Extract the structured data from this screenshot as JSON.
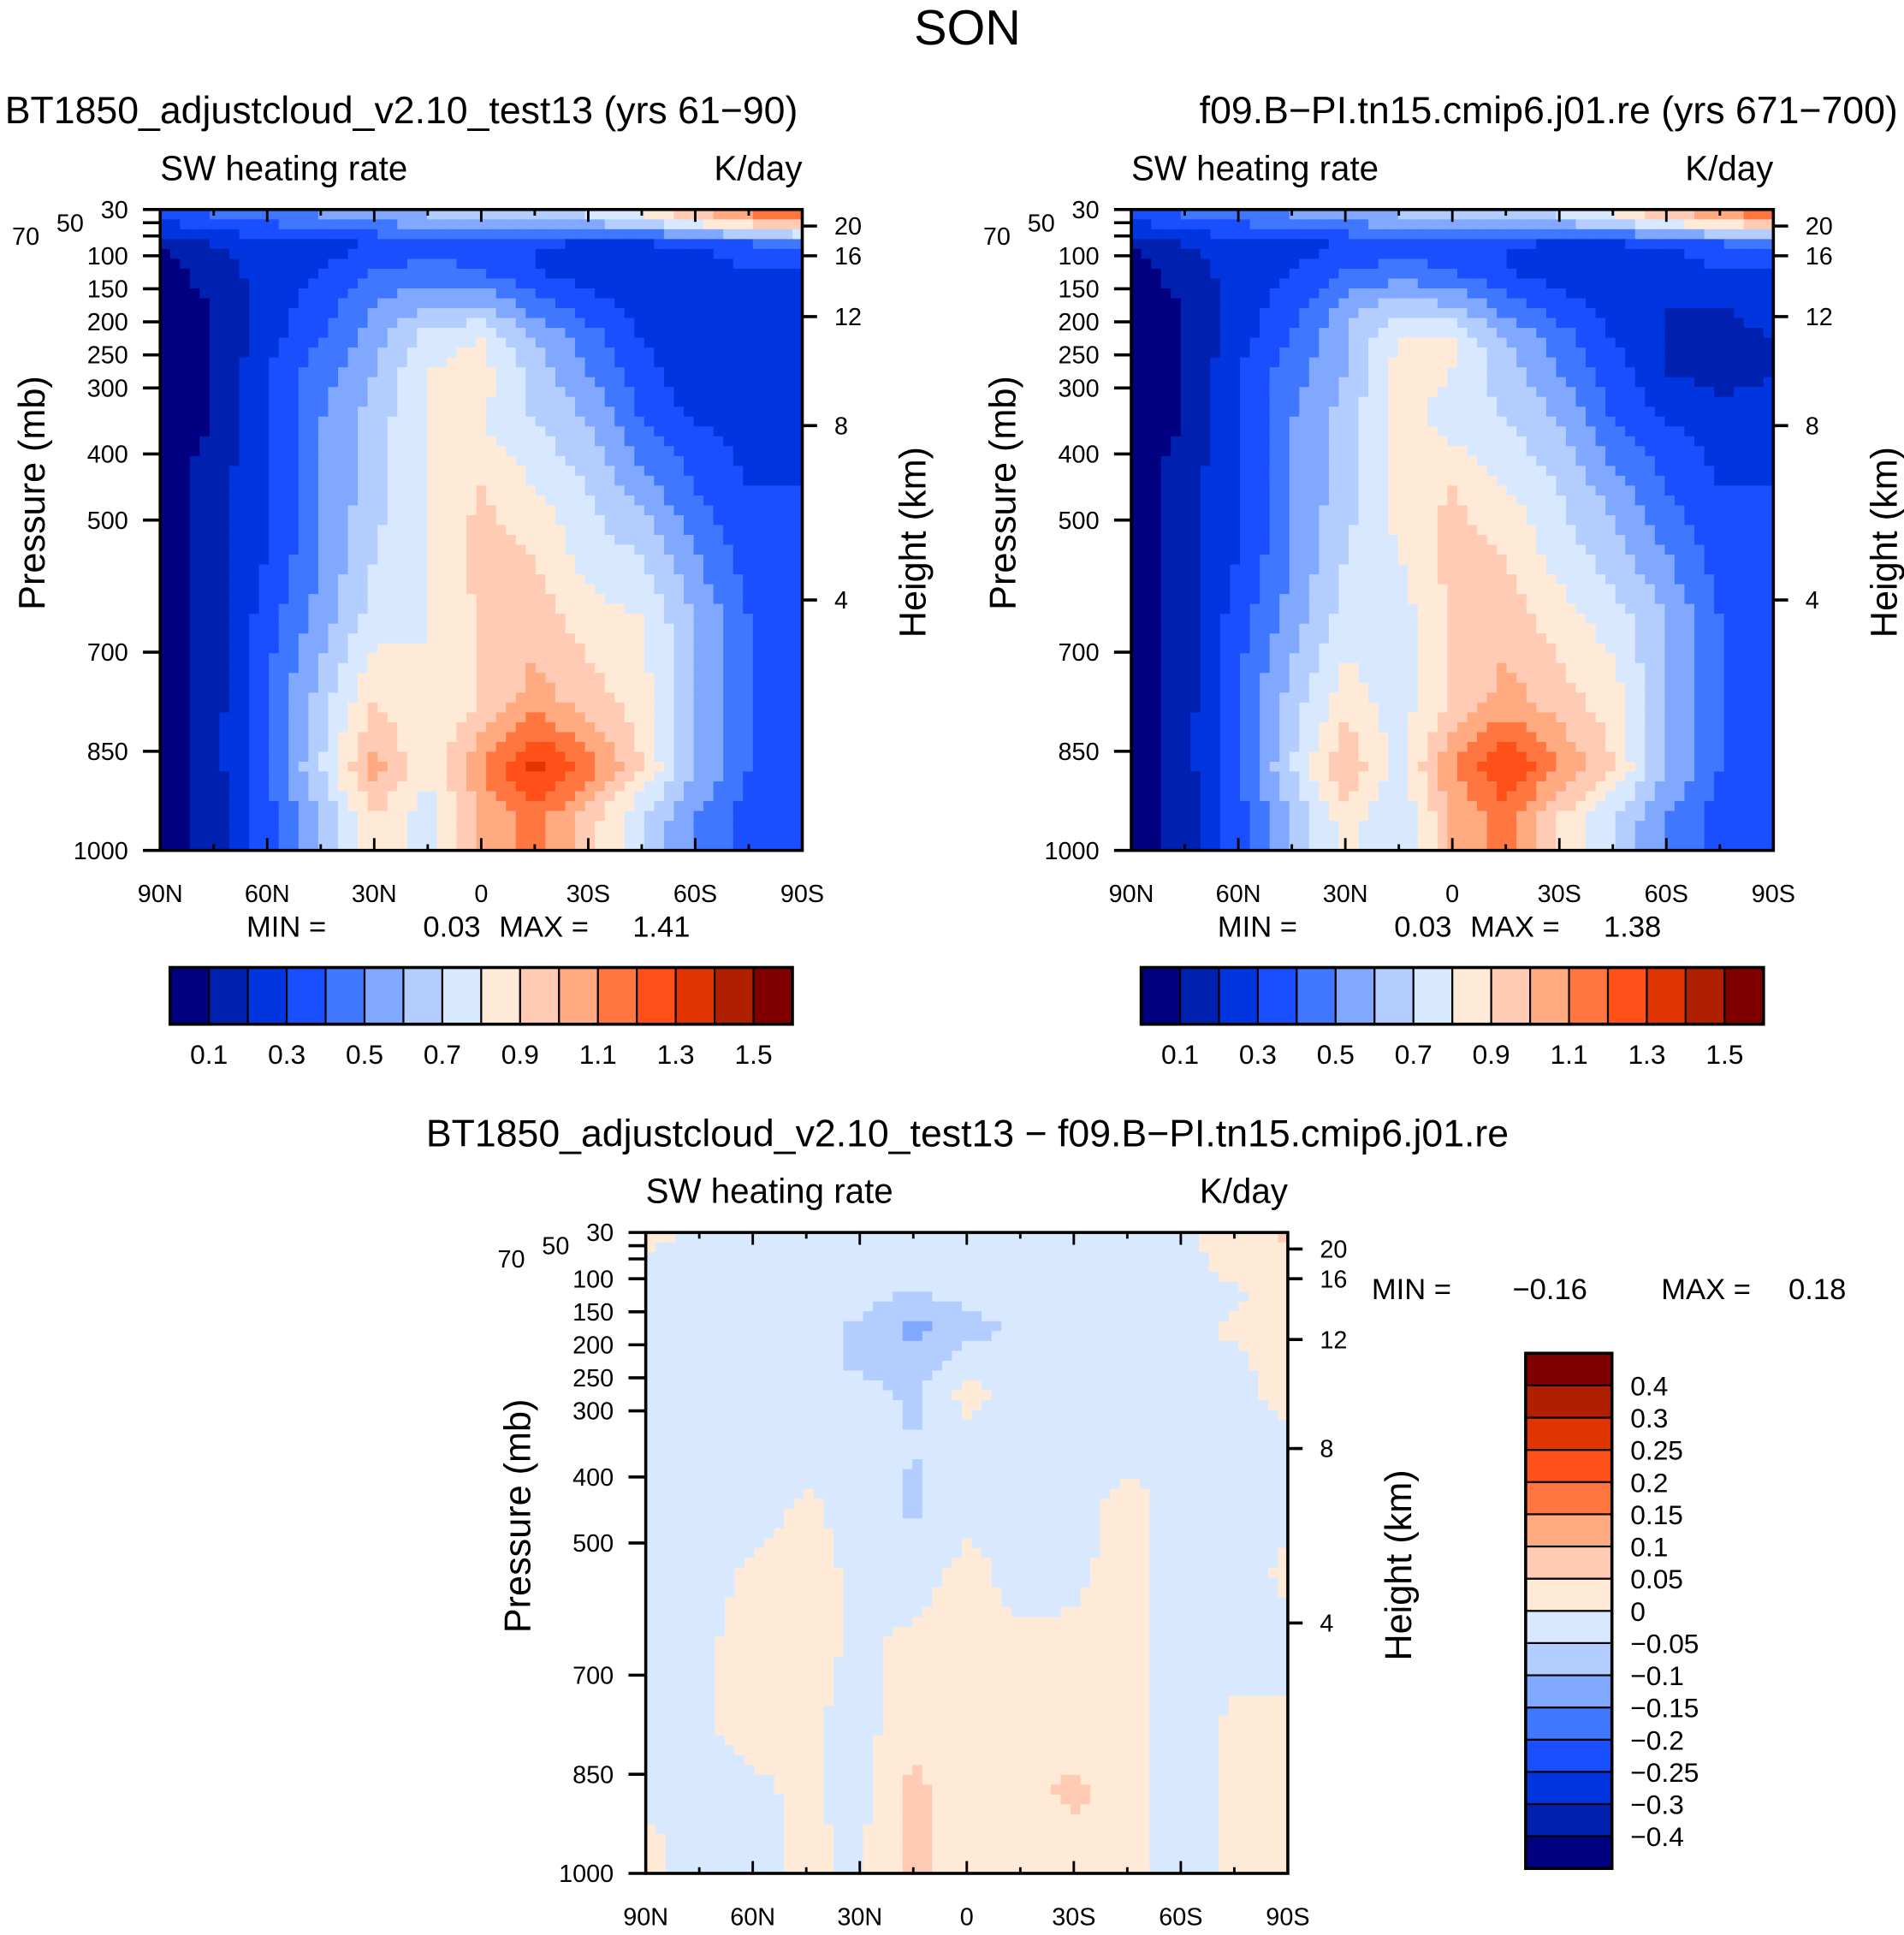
{
  "title": "SON",
  "chart_data": [
    {
      "type": "heatmap",
      "title": "BT1850_adjustcloud_v2.10_test13 (yrs 61−90)",
      "left_label": "SW heating rate",
      "right_label": "K/day",
      "xlabel": "",
      "ylabel": "Pressure (mb)",
      "y2label": "Height (km)",
      "x_ticks": [
        "90N",
        "60N",
        "30N",
        "0",
        "30S",
        "60S",
        "90S"
      ],
      "y_ticks": [
        "30",
        "50",
        "70",
        "100",
        "150",
        "200",
        "250",
        "300",
        "400",
        "500",
        "700",
        "850",
        "1000"
      ],
      "y2_ticks": [
        "20",
        "16",
        "12",
        "8",
        "4"
      ],
      "min_label": "MIN =",
      "min": "0.03",
      "max_label": "MAX =",
      "max": "1.41",
      "levels": [
        0.1,
        0.2,
        0.3,
        0.4,
        0.5,
        0.6,
        0.7,
        0.8,
        0.9,
        1.0,
        1.1,
        1.2,
        1.3,
        1.4,
        1.5
      ],
      "colorbar_labels": [
        "0.1",
        "0.3",
        "0.5",
        "0.7",
        "0.9",
        "1.1",
        "1.3",
        "1.5"
      ],
      "lat": [
        90,
        75,
        60,
        45,
        30,
        15,
        0,
        -15,
        -30,
        -45,
        -60,
        -75,
        -90
      ],
      "pressure": [
        40,
        85,
        125,
        175,
        225,
        275,
        350,
        450,
        550,
        650,
        775,
        875,
        950
      ],
      "values": [
        [
          0.35,
          0.4,
          0.45,
          0.5,
          0.55,
          0.6,
          0.6,
          0.65,
          0.7,
          0.8,
          0.95,
          1.1,
          1.2
        ],
        [
          0.1,
          0.2,
          0.25,
          0.25,
          0.3,
          0.35,
          0.35,
          0.3,
          0.25,
          0.25,
          0.3,
          0.35,
          0.4
        ],
        [
          0.05,
          0.15,
          0.25,
          0.3,
          0.4,
          0.45,
          0.4,
          0.3,
          0.25,
          0.2,
          0.25,
          0.3,
          0.3
        ],
        [
          0.05,
          0.1,
          0.25,
          0.35,
          0.5,
          0.6,
          0.6,
          0.45,
          0.35,
          0.25,
          0.2,
          0.2,
          0.25
        ],
        [
          0.05,
          0.1,
          0.25,
          0.4,
          0.55,
          0.75,
          0.8,
          0.6,
          0.45,
          0.3,
          0.2,
          0.2,
          0.25
        ],
        [
          0.05,
          0.1,
          0.3,
          0.45,
          0.6,
          0.8,
          0.85,
          0.65,
          0.5,
          0.35,
          0.2,
          0.2,
          0.25
        ],
        [
          0.05,
          0.1,
          0.3,
          0.5,
          0.65,
          0.8,
          0.8,
          0.7,
          0.6,
          0.4,
          0.3,
          0.25,
          0.25
        ],
        [
          0.05,
          0.15,
          0.3,
          0.5,
          0.65,
          0.8,
          0.9,
          0.8,
          0.7,
          0.55,
          0.4,
          0.3,
          0.3
        ],
        [
          0.05,
          0.15,
          0.3,
          0.5,
          0.7,
          0.8,
          0.95,
          0.9,
          0.75,
          0.7,
          0.5,
          0.35,
          0.3
        ],
        [
          0.05,
          0.15,
          0.35,
          0.55,
          0.75,
          0.8,
          0.9,
          0.95,
          0.85,
          0.8,
          0.6,
          0.4,
          0.3
        ],
        [
          0.05,
          0.15,
          0.4,
          0.65,
          0.9,
          0.8,
          0.9,
          1.05,
          0.95,
          0.85,
          0.6,
          0.4,
          0.3
        ],
        [
          0.05,
          0.15,
          0.4,
          0.7,
          1.05,
          0.8,
          1.1,
          1.35,
          1.15,
          0.9,
          0.6,
          0.4,
          0.3
        ],
        [
          0.05,
          0.15,
          0.35,
          0.6,
          0.9,
          0.75,
          1.0,
          1.15,
          0.95,
          0.7,
          0.5,
          0.35,
          0.3
        ]
      ]
    },
    {
      "type": "heatmap",
      "title": "f09.B−PI.tn15.cmip6.j01.re (yrs 671−700)",
      "left_label": "SW heating rate",
      "right_label": "K/day",
      "xlabel": "",
      "ylabel": "Pressure (mb)",
      "y2label": "Height (km)",
      "x_ticks": [
        "90N",
        "60N",
        "30N",
        "0",
        "30S",
        "60S",
        "90S"
      ],
      "y_ticks": [
        "30",
        "50",
        "70",
        "100",
        "150",
        "200",
        "250",
        "300",
        "400",
        "500",
        "700",
        "850",
        "1000"
      ],
      "y2_ticks": [
        "20",
        "16",
        "12",
        "8",
        "4"
      ],
      "min_label": "MIN =",
      "min": "0.03",
      "max_label": "MAX =",
      "max": "1.38",
      "levels": [
        0.1,
        0.2,
        0.3,
        0.4,
        0.5,
        0.6,
        0.7,
        0.8,
        0.9,
        1.0,
        1.1,
        1.2,
        1.3,
        1.4,
        1.5
      ],
      "colorbar_labels": [
        "0.1",
        "0.3",
        "0.5",
        "0.7",
        "0.9",
        "1.1",
        "1.3",
        "1.5"
      ],
      "lat": [
        90,
        75,
        60,
        45,
        30,
        15,
        0,
        -15,
        -30,
        -45,
        -60,
        -75,
        -90
      ],
      "pressure": [
        40,
        85,
        125,
        175,
        225,
        275,
        350,
        450,
        550,
        650,
        775,
        875,
        950
      ],
      "values": [
        [
          0.35,
          0.4,
          0.45,
          0.5,
          0.55,
          0.6,
          0.6,
          0.65,
          0.7,
          0.8,
          0.95,
          1.05,
          1.15
        ],
        [
          0.1,
          0.2,
          0.25,
          0.25,
          0.3,
          0.35,
          0.35,
          0.3,
          0.25,
          0.25,
          0.3,
          0.35,
          0.4
        ],
        [
          0.05,
          0.15,
          0.25,
          0.3,
          0.4,
          0.45,
          0.4,
          0.3,
          0.25,
          0.2,
          0.25,
          0.3,
          0.3
        ],
        [
          0.05,
          0.1,
          0.25,
          0.35,
          0.55,
          0.65,
          0.6,
          0.45,
          0.35,
          0.25,
          0.2,
          0.2,
          0.25
        ],
        [
          0.05,
          0.1,
          0.25,
          0.4,
          0.6,
          0.8,
          0.8,
          0.6,
          0.45,
          0.3,
          0.2,
          0.15,
          0.2
        ],
        [
          0.05,
          0.1,
          0.3,
          0.45,
          0.6,
          0.85,
          0.8,
          0.65,
          0.5,
          0.35,
          0.2,
          0.15,
          0.2
        ],
        [
          0.05,
          0.1,
          0.3,
          0.5,
          0.65,
          0.85,
          0.75,
          0.7,
          0.6,
          0.4,
          0.3,
          0.25,
          0.25
        ],
        [
          0.05,
          0.15,
          0.3,
          0.5,
          0.65,
          0.85,
          0.9,
          0.8,
          0.7,
          0.55,
          0.4,
          0.3,
          0.3
        ],
        [
          0.05,
          0.15,
          0.3,
          0.5,
          0.7,
          0.8,
          0.95,
          0.9,
          0.75,
          0.65,
          0.5,
          0.35,
          0.3
        ],
        [
          0.05,
          0.15,
          0.35,
          0.55,
          0.75,
          0.75,
          0.9,
          0.95,
          0.85,
          0.75,
          0.6,
          0.4,
          0.3
        ],
        [
          0.05,
          0.15,
          0.4,
          0.65,
          0.85,
          0.75,
          0.9,
          1.05,
          0.95,
          0.85,
          0.6,
          0.4,
          0.3
        ],
        [
          0.05,
          0.15,
          0.4,
          0.7,
          1.0,
          0.75,
          1.1,
          1.3,
          1.1,
          0.9,
          0.6,
          0.4,
          0.3
        ],
        [
          0.05,
          0.15,
          0.35,
          0.6,
          0.85,
          0.7,
          1.0,
          1.15,
          0.9,
          0.7,
          0.5,
          0.35,
          0.3
        ]
      ]
    },
    {
      "type": "heatmap",
      "title": "BT1850_adjustcloud_v2.10_test13 − f09.B−PI.tn15.cmip6.j01.re",
      "left_label": "SW heating rate",
      "right_label": "K/day",
      "xlabel": "",
      "ylabel": "Pressure (mb)",
      "y2label": "Height (km)",
      "x_ticks": [
        "90N",
        "60N",
        "30N",
        "0",
        "30S",
        "60S",
        "90S"
      ],
      "y_ticks": [
        "30",
        "50",
        "70",
        "100",
        "150",
        "200",
        "250",
        "300",
        "400",
        "500",
        "700",
        "850",
        "1000"
      ],
      "y2_ticks": [
        "20",
        "16",
        "12",
        "8",
        "4"
      ],
      "min_label": "MIN =",
      "min": "−0.16",
      "max_label": "MAX =",
      "max": "0.18",
      "levels": [
        -0.4,
        -0.3,
        -0.25,
        -0.2,
        -0.15,
        -0.1,
        -0.05,
        0,
        0.05,
        0.1,
        0.15,
        0.2,
        0.25,
        0.3,
        0.4
      ],
      "colorbar_labels": [
        "−0.4",
        "−0.3",
        "−0.25",
        "−0.2",
        "−0.15",
        "−0.1",
        "−0.05",
        "0",
        "0.05",
        "0.1",
        "0.15",
        "0.2",
        "0.25",
        "0.3",
        "0.4"
      ],
      "lat": [
        90,
        75,
        60,
        45,
        30,
        15,
        0,
        -15,
        -30,
        -45,
        -60,
        -75,
        -90
      ],
      "pressure": [
        40,
        85,
        125,
        175,
        225,
        275,
        350,
        450,
        550,
        650,
        775,
        875,
        950
      ],
      "values": [
        [
          0.01,
          -0.01,
          -0.02,
          -0.02,
          -0.02,
          -0.02,
          -0.03,
          -0.03,
          -0.02,
          -0.02,
          -0.01,
          0.02,
          0.06
        ],
        [
          -0.02,
          -0.02,
          -0.02,
          -0.02,
          -0.02,
          -0.02,
          -0.02,
          -0.02,
          -0.02,
          -0.02,
          -0.02,
          0.02,
          0.02
        ],
        [
          -0.02,
          -0.02,
          -0.02,
          -0.02,
          -0.03,
          -0.06,
          -0.03,
          -0.02,
          -0.02,
          -0.02,
          -0.02,
          -0.01,
          0.02
        ],
        [
          -0.02,
          -0.02,
          -0.02,
          -0.03,
          -0.06,
          -0.12,
          -0.07,
          -0.04,
          -0.02,
          -0.02,
          -0.02,
          0.01,
          0.02
        ],
        [
          -0.02,
          -0.02,
          -0.02,
          -0.03,
          -0.06,
          -0.08,
          -0.03,
          -0.02,
          -0.02,
          -0.02,
          -0.02,
          -0.01,
          0.02
        ],
        [
          -0.02,
          -0.02,
          -0.02,
          -0.02,
          -0.03,
          -0.06,
          0.02,
          -0.02,
          -0.02,
          -0.02,
          -0.02,
          -0.01,
          0.01
        ],
        [
          -0.02,
          -0.02,
          -0.02,
          -0.02,
          -0.02,
          -0.05,
          -0.02,
          -0.02,
          -0.02,
          -0.02,
          -0.02,
          -0.02,
          -0.01
        ],
        [
          -0.02,
          -0.02,
          -0.02,
          0.01,
          -0.02,
          -0.06,
          -0.02,
          -0.02,
          -0.02,
          0.02,
          -0.02,
          -0.02,
          -0.01
        ],
        [
          -0.02,
          -0.02,
          0.01,
          0.02,
          -0.01,
          -0.02,
          0.02,
          -0.02,
          -0.01,
          0.02,
          -0.02,
          -0.02,
          0.01
        ],
        [
          -0.02,
          -0.01,
          0.02,
          0.02,
          -0.01,
          0.01,
          0.02,
          0.01,
          0.01,
          0.02,
          -0.02,
          -0.02,
          -0.02
        ],
        [
          -0.02,
          -0.01,
          0.02,
          0.01,
          -0.02,
          0.03,
          0.02,
          0.01,
          0.01,
          0.02,
          -0.02,
          0.01,
          0.01
        ],
        [
          -0.01,
          -0.02,
          -0.01,
          0.01,
          -0.02,
          0.07,
          0.01,
          0.03,
          0.07,
          0.01,
          -0.02,
          0.01,
          0.01
        ],
        [
          0.01,
          -0.02,
          -0.01,
          0.01,
          -0.01,
          0.07,
          0.01,
          0.01,
          0.02,
          0.01,
          -0.02,
          0.01,
          0.01
        ]
      ]
    }
  ],
  "colors": [
    "#000080",
    "#0020b0",
    "#0035e0",
    "#1a4fff",
    "#4077ff",
    "#80a8ff",
    "#b4cdff",
    "#d8e9ff",
    "#ffead8",
    "#ffcbb4",
    "#ffaa80",
    "#ff7640",
    "#ff501a",
    "#e03500",
    "#b02000",
    "#800000"
  ]
}
